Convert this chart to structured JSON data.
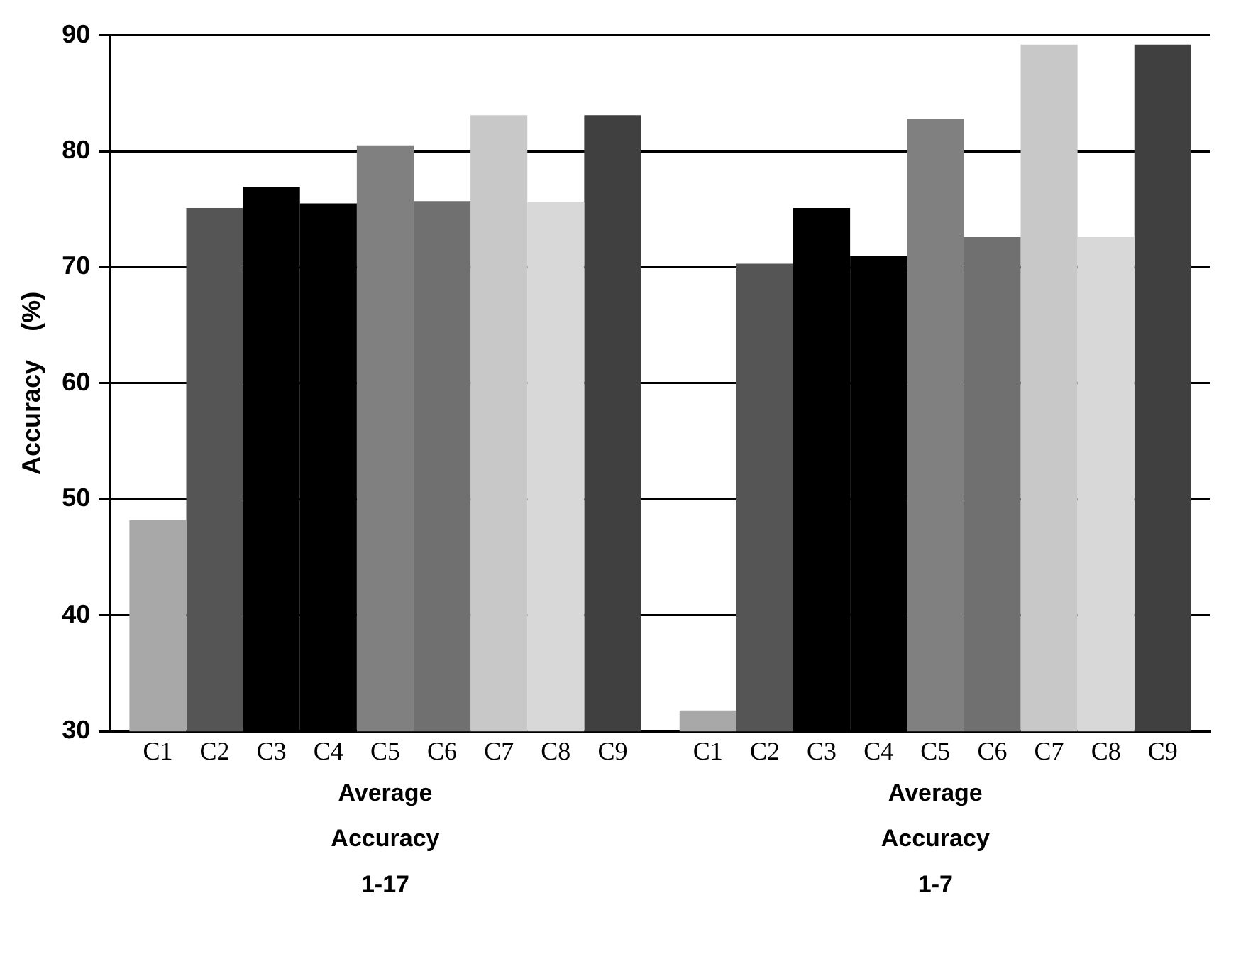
{
  "chart_data": {
    "type": "bar",
    "ylabel": "Accuracy    (%)",
    "categories": [
      "Average Accuracy 1-17",
      "Average Accuracy 1-7"
    ],
    "series": [
      {
        "name": "C1",
        "color": "#a8a8a8",
        "values": [
          48.2,
          31.8
        ]
      },
      {
        "name": "C2",
        "color": "#555555",
        "values": [
          75.1,
          70.3
        ]
      },
      {
        "name": "C3",
        "color": "#000000",
        "values": [
          76.9,
          75.1
        ]
      },
      {
        "name": "C4",
        "color": "#000000",
        "values": [
          75.5,
          71.0
        ]
      },
      {
        "name": "C5",
        "color": "#808080",
        "values": [
          80.5,
          82.8
        ]
      },
      {
        "name": "C6",
        "color": "#707070",
        "values": [
          75.7,
          72.6
        ]
      },
      {
        "name": "C7",
        "color": "#c8c8c8",
        "values": [
          83.1,
          89.2
        ]
      },
      {
        "name": "C8",
        "color": "#d8d8d8",
        "values": [
          75.6,
          72.6
        ]
      },
      {
        "name": "C9",
        "color": "#404040",
        "values": [
          83.1,
          89.2
        ]
      }
    ],
    "ylim": [
      30,
      90
    ],
    "yticks": [
      30,
      40,
      50,
      60,
      70,
      80,
      90
    ],
    "grid": "y",
    "legend": false
  }
}
